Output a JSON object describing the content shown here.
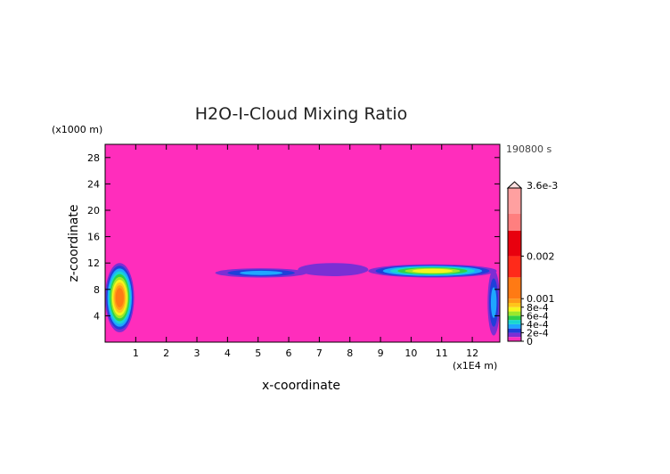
{
  "chart_data": {
    "type": "heatmap",
    "title": "H2O-I-Cloud Mixing Ratio",
    "xlabel": "x-coordinate",
    "ylabel": "z-coordinate",
    "x_unit": "(x1E4 m)",
    "y_unit": "(x1000 m)",
    "time_label": "190800 s",
    "xlim": [
      0,
      12.9
    ],
    "ylim": [
      0,
      30
    ],
    "x_ticks": [
      "1",
      "2",
      "3",
      "4",
      "5",
      "6",
      "7",
      "8",
      "9",
      "10",
      "11",
      "12"
    ],
    "y_ticks": [
      "4",
      "8",
      "12",
      "16",
      "20",
      "24",
      "28"
    ],
    "colorbar": {
      "max_label": "3.6e-3",
      "labels": [
        "0.002",
        "0.001",
        "8e-4",
        "6e-4",
        "4e-4",
        "2e-4",
        "0"
      ],
      "values": [
        0.002,
        0.001,
        0.0008,
        0.0006,
        0.0004,
        0.0002,
        0
      ],
      "max": 0.0036,
      "stops": [
        {
          "v": 0,
          "color": "#ff2dbc"
        },
        {
          "v": 0.0001,
          "color": "#7b2fd4"
        },
        {
          "v": 0.0002,
          "color": "#1f3fd9"
        },
        {
          "v": 0.0003,
          "color": "#1ea7ff"
        },
        {
          "v": 0.0004,
          "color": "#19d6d0"
        },
        {
          "v": 0.0005,
          "color": "#2fd14a"
        },
        {
          "v": 0.0006,
          "color": "#9be82c"
        },
        {
          "v": 0.0007,
          "color": "#f5f51d"
        },
        {
          "v": 0.0008,
          "color": "#ffc61a"
        },
        {
          "v": 0.0009,
          "color": "#ff9b17"
        },
        {
          "v": 0.001,
          "color": "#ff7a14"
        },
        {
          "v": 0.0015,
          "color": "#ff2a1a"
        },
        {
          "v": 0.002,
          "color": "#e8000e"
        },
        {
          "v": 0.0026,
          "color": "#ff7f7f"
        },
        {
          "v": 0.003,
          "color": "#ffa0a0"
        },
        {
          "v": 0.0036,
          "color": "#ffcccc"
        }
      ]
    },
    "features": [
      {
        "x_range": [
          0,
          0.95
        ],
        "z_range": [
          1.5,
          12
        ],
        "peak": 0.0012,
        "note": "left boundary cloud"
      },
      {
        "x_range": [
          3.6,
          6.6
        ],
        "z_range": [
          9.8,
          11.2
        ],
        "peak": 0.0003,
        "note": "anvil layer"
      },
      {
        "x_range": [
          6.3,
          8.6
        ],
        "z_range": [
          10.0,
          12.0
        ],
        "peak": 0.0001,
        "note": "thin layer"
      },
      {
        "x_range": [
          8.6,
          12.8
        ],
        "z_range": [
          9.8,
          11.8
        ],
        "peak": 0.0007,
        "note": "anvil layer"
      },
      {
        "x_range": [
          12.5,
          12.9
        ],
        "z_range": [
          1,
          11
        ],
        "peak": 0.0003,
        "note": "right boundary cloud"
      }
    ]
  }
}
